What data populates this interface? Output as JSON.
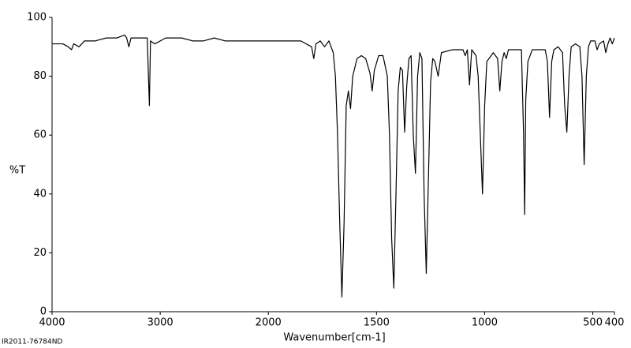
{
  "chart_data": {
    "type": "line",
    "y_label": "%T",
    "x_label": "Wavenumber[cm-1]",
    "footer": "IR2011-76784ND",
    "color": "#000000",
    "xlim": [
      4000,
      400
    ],
    "xticks": [
      4000,
      3000,
      2000,
      1500,
      1000,
      500,
      400
    ],
    "x_scale_change": {
      "at": 2000,
      "factor_above": 0.5
    },
    "ylim": [
      0,
      100
    ],
    "yticks": [
      0,
      20,
      40,
      60,
      80,
      100
    ],
    "grid": false,
    "x": [
      4000,
      3900,
      3850,
      3820,
      3800,
      3750,
      3700,
      3600,
      3500,
      3400,
      3330,
      3310,
      3290,
      3270,
      3200,
      3120,
      3100,
      3090,
      3050,
      3000,
      2950,
      2900,
      2800,
      2700,
      2600,
      2500,
      2400,
      2300,
      2200,
      2100,
      2000,
      1900,
      1850,
      1800,
      1790,
      1780,
      1760,
      1740,
      1720,
      1700,
      1690,
      1680,
      1670,
      1660,
      1650,
      1640,
      1630,
      1620,
      1610,
      1590,
      1570,
      1550,
      1530,
      1520,
      1510,
      1490,
      1470,
      1450,
      1440,
      1430,
      1420,
      1410,
      1400,
      1390,
      1380,
      1370,
      1360,
      1350,
      1340,
      1330,
      1320,
      1310,
      1300,
      1290,
      1280,
      1270,
      1260,
      1250,
      1240,
      1230,
      1215,
      1200,
      1150,
      1100,
      1090,
      1080,
      1070,
      1060,
      1040,
      1030,
      1020,
      1010,
      1000,
      990,
      980,
      960,
      940,
      930,
      920,
      910,
      900,
      890,
      850,
      830,
      820,
      815,
      810,
      800,
      780,
      740,
      720,
      710,
      700,
      690,
      680,
      660,
      640,
      630,
      620,
      610,
      600,
      580,
      560,
      550,
      540,
      530,
      520,
      510,
      490,
      480,
      470,
      450,
      440,
      430,
      420,
      410,
      400
    ],
    "values": [
      91,
      91,
      90,
      89,
      91,
      90,
      92,
      92,
      93,
      93,
      94,
      93,
      90,
      93,
      93,
      93,
      70,
      92,
      91,
      92,
      93,
      93,
      93,
      92,
      92,
      93,
      92,
      92,
      92,
      92,
      92,
      92,
      92,
      90,
      86,
      91,
      92,
      90,
      92,
      88,
      80,
      60,
      30,
      5,
      30,
      70,
      75,
      69,
      80,
      86,
      87,
      86,
      81,
      75,
      82,
      87,
      87,
      80,
      60,
      25,
      8,
      40,
      75,
      83,
      82,
      61,
      77,
      86,
      87,
      60,
      47,
      80,
      88,
      86,
      40,
      13,
      45,
      78,
      86,
      85,
      80,
      88,
      89,
      89,
      87,
      89,
      77,
      89,
      87,
      80,
      60,
      40,
      70,
      85,
      86,
      88,
      86,
      75,
      85,
      88,
      86,
      89,
      89,
      89,
      60,
      33,
      72,
      85,
      89,
      89,
      89,
      85,
      66,
      85,
      89,
      90,
      88,
      70,
      61,
      80,
      90,
      91,
      90,
      80,
      50,
      80,
      90,
      92,
      92,
      89,
      91,
      92,
      88,
      91,
      93,
      91,
      93
    ]
  }
}
